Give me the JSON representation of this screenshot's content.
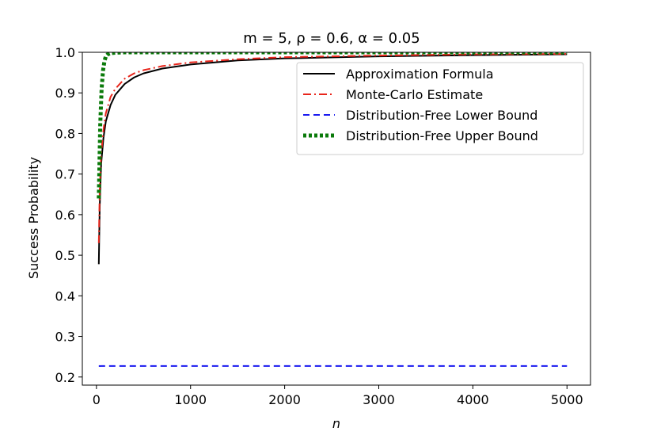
{
  "chart_data": {
    "type": "line",
    "title": "m = 5, ρ = 0.6, α = 0.05",
    "xlabel": "n",
    "ylabel": "Success Probability",
    "xlim": [
      -150,
      5250
    ],
    "ylim": [
      0.18,
      1.0
    ],
    "xticks": [
      0,
      1000,
      2000,
      3000,
      4000,
      5000
    ],
    "yticks": [
      0.2,
      0.3,
      0.4,
      0.5,
      0.6,
      0.7,
      0.8,
      0.9,
      1.0
    ],
    "grid": false,
    "legend_position": "upper-right",
    "series": [
      {
        "name": "Approximation Formula",
        "color": "#000000",
        "style": "solid",
        "x": [
          25,
          35,
          50,
          75,
          100,
          150,
          200,
          300,
          400,
          500,
          700,
          1000,
          1500,
          2000,
          3000,
          4000,
          5000
        ],
        "y": [
          0.478,
          0.62,
          0.725,
          0.79,
          0.83,
          0.87,
          0.895,
          0.922,
          0.938,
          0.948,
          0.96,
          0.97,
          0.98,
          0.985,
          0.99,
          0.993,
          0.995
        ]
      },
      {
        "name": "Monte-Carlo Estimate",
        "color": "#e8251b",
        "style": "dashdot",
        "x": [
          25,
          35,
          50,
          75,
          100,
          150,
          200,
          300,
          400,
          500,
          700,
          1000,
          1500,
          2000,
          3000,
          4000,
          5000
        ],
        "y": [
          0.53,
          0.66,
          0.75,
          0.81,
          0.85,
          0.89,
          0.91,
          0.935,
          0.948,
          0.956,
          0.966,
          0.975,
          0.983,
          0.988,
          0.992,
          0.995,
          0.996
        ]
      },
      {
        "name": "Distribution-Free Lower Bound",
        "color": "#1a1af0",
        "style": "dashed",
        "x": [
          25,
          5000
        ],
        "y": [
          0.227,
          0.227
        ]
      },
      {
        "name": "Distribution-Free Upper Bound",
        "color": "#0a7a0a",
        "style": "dotted",
        "x": [
          25,
          40,
          55,
          70,
          85,
          100,
          120,
          150,
          200,
          300,
          1000,
          5000
        ],
        "y": [
          0.64,
          0.82,
          0.91,
          0.955,
          0.978,
          0.99,
          0.995,
          0.998,
          0.999,
          1.0,
          1.0,
          1.0
        ]
      }
    ]
  }
}
